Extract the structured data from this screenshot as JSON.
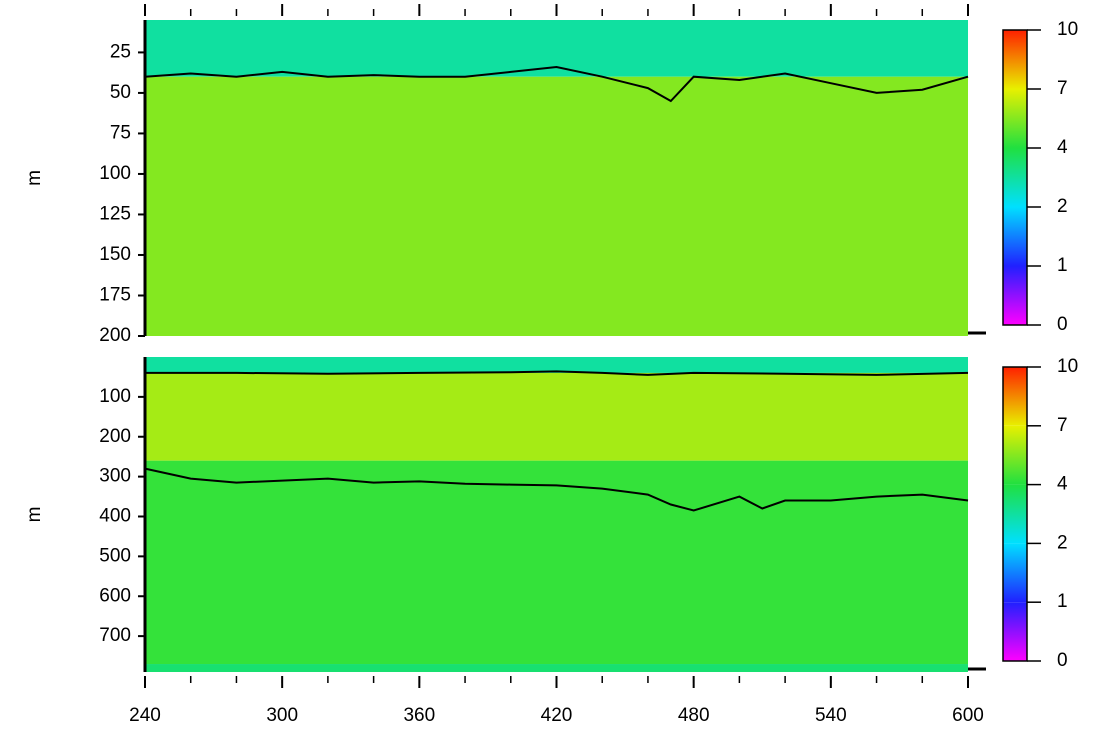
{
  "chart_data": [
    {
      "type": "heatmap",
      "ylabel": "m",
      "invert_y": true,
      "xlim": [
        240,
        600
      ],
      "xticks": [
        240,
        300,
        360,
        420,
        480,
        540,
        600
      ],
      "x_minor_step": 20,
      "show_xtick_labels": false,
      "ylim": [
        5,
        200
      ],
      "yticks": [
        25,
        50,
        75,
        100,
        125,
        150,
        175,
        200
      ],
      "bands": [
        {
          "from": 5,
          "to": 40,
          "value": 3
        },
        {
          "from": 40,
          "to": 200,
          "value": 5.5
        }
      ],
      "contours": [
        {
          "color": "#000000",
          "x": [
            240,
            260,
            280,
            300,
            320,
            340,
            360,
            380,
            400,
            420,
            440,
            460,
            470,
            480,
            500,
            520,
            540,
            560,
            580,
            600
          ],
          "y": [
            40,
            38,
            40,
            37,
            40,
            39,
            40,
            40,
            37,
            34,
            40,
            47,
            55,
            40,
            42,
            38,
            44,
            50,
            48,
            40
          ]
        }
      ],
      "colorbar": {
        "ticks": [
          0,
          1,
          2,
          4,
          7,
          10
        ],
        "colors": [
          "#ff00ff",
          "#2020ff",
          "#00e0ff",
          "#20e040",
          "#e8f000",
          "#ff2000"
        ]
      }
    },
    {
      "type": "heatmap",
      "ylabel": "m",
      "invert_y": true,
      "xlim": [
        240,
        600
      ],
      "xticks": [
        240,
        300,
        360,
        420,
        480,
        540,
        600
      ],
      "x_minor_step": 20,
      "show_xtick_labels": true,
      "ylim": [
        0,
        790
      ],
      "yticks": [
        100,
        200,
        300,
        400,
        500,
        600,
        700
      ],
      "bands": [
        {
          "from": 0,
          "to": 40,
          "value": 3
        },
        {
          "from": 40,
          "to": 260,
          "value": 6
        },
        {
          "from": 260,
          "to": 770,
          "value": 4.3
        },
        {
          "from": 770,
          "to": 790,
          "value": 3.5
        }
      ],
      "contours": [
        {
          "color": "#000000",
          "x": [
            240,
            280,
            320,
            360,
            400,
            420,
            440,
            460,
            480,
            520,
            560,
            600
          ],
          "y": [
            40,
            40,
            42,
            40,
            38,
            36,
            40,
            45,
            40,
            42,
            45,
            40
          ]
        },
        {
          "color": "#000000",
          "x": [
            240,
            260,
            280,
            300,
            320,
            340,
            360,
            380,
            400,
            420,
            440,
            460,
            470,
            480,
            500,
            510,
            520,
            540,
            560,
            580,
            600
          ],
          "y": [
            280,
            305,
            315,
            310,
            305,
            315,
            312,
            318,
            320,
            322,
            330,
            345,
            370,
            385,
            350,
            380,
            360,
            360,
            350,
            345,
            360
          ]
        }
      ],
      "colorbar": {
        "ticks": [
          0,
          1,
          2,
          4,
          7,
          10
        ],
        "colors": [
          "#ff00ff",
          "#2020ff",
          "#00e0ff",
          "#20e040",
          "#e8f000",
          "#ff2000"
        ]
      }
    }
  ]
}
